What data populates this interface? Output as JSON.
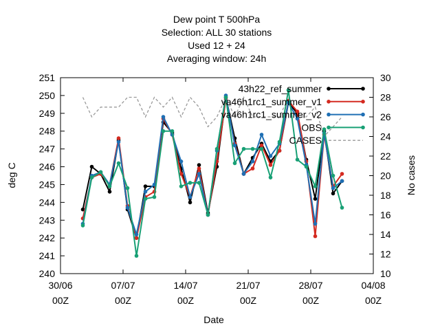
{
  "chart_data": {
    "type": "line",
    "title_lines": [
      "Dew point T 500hPa",
      "Selection: ALL     30 stations",
      "Used  12  + 24",
      "Averaging window: 24h"
    ],
    "xlabel": "Date",
    "ylabel": "deg C",
    "y2label": "No cases",
    "xlim": [
      0,
      35
    ],
    "ylim": [
      240,
      251
    ],
    "y2lim": [
      10,
      30
    ],
    "grid": false,
    "legend_position": "top-right",
    "x_ticks": [
      {
        "x": 0,
        "line1": "30/06",
        "line2": "00Z"
      },
      {
        "x": 7,
        "line1": "07/07",
        "line2": "00Z"
      },
      {
        "x": 14,
        "line1": "14/07",
        "line2": "00Z"
      },
      {
        "x": 21,
        "line1": "21/07",
        "line2": "00Z"
      },
      {
        "x": 28,
        "line1": "28/07",
        "line2": "00Z"
      },
      {
        "x": 35,
        "line1": "04/08",
        "line2": "00Z"
      }
    ],
    "y_ticks": [
      240,
      241,
      242,
      243,
      244,
      245,
      246,
      247,
      248,
      249,
      250,
      251
    ],
    "y2_ticks": [
      10,
      12,
      14,
      16,
      18,
      20,
      22,
      24,
      26,
      28,
      30
    ],
    "series": [
      {
        "name": "43h22 ref_summer",
        "color": "#000000",
        "axis": "left",
        "x": [
          2.5,
          3.5,
          4.5,
          5.5,
          6.5,
          7.5,
          8.5,
          9.5,
          10.5,
          11.5,
          12.5,
          13.5,
          14.5,
          15.5,
          16.5,
          17.5,
          18.5,
          19.5,
          20.5,
          21.5,
          22.5,
          23.5,
          24.5,
          25.5,
          26.5,
          27.5,
          28.5,
          29.5,
          30.5,
          31.5
        ],
        "y": [
          243.6,
          246.0,
          245.6,
          244.6,
          247.5,
          243.6,
          242.0,
          244.9,
          244.9,
          248.5,
          247.9,
          245.9,
          244.0,
          246.1,
          243.4,
          246.0,
          249.9,
          247.6,
          245.6,
          246.5,
          247.3,
          246.3,
          246.9,
          249.6,
          249.0,
          246.4,
          244.2,
          248.0,
          244.5,
          245.2
        ]
      },
      {
        "name": "va46h1rc1_summer_v1",
        "color": "#d42a20",
        "axis": "left",
        "x": [
          2.5,
          3.5,
          4.5,
          5.5,
          6.5,
          7.5,
          8.5,
          9.5,
          10.5,
          11.5,
          12.5,
          13.5,
          14.5,
          15.5,
          16.5,
          17.5,
          18.5,
          19.5,
          20.5,
          21.5,
          22.5,
          23.5,
          24.5,
          25.5,
          26.5,
          27.5,
          28.5,
          29.5,
          30.5,
          31.5
        ],
        "y": [
          243.1,
          245.4,
          245.6,
          245.0,
          247.6,
          243.8,
          242.0,
          244.3,
          244.6,
          248.7,
          247.8,
          245.6,
          244.3,
          245.9,
          243.3,
          246.3,
          249.8,
          247.3,
          245.6,
          245.9,
          247.2,
          246.1,
          246.9,
          249.7,
          249.1,
          246.3,
          242.1,
          247.8,
          244.9,
          245.6
        ]
      },
      {
        "name": "va46h1rc1_summer_v2",
        "color": "#1f6fb4",
        "axis": "left",
        "x": [
          2.5,
          3.5,
          4.5,
          5.5,
          6.5,
          7.5,
          8.5,
          9.5,
          10.5,
          11.5,
          12.5,
          13.5,
          14.5,
          15.5,
          16.5,
          17.5,
          18.5,
          19.5,
          20.5,
          21.5,
          22.5,
          23.5,
          24.5,
          25.5,
          26.5,
          27.5,
          28.5,
          29.5,
          30.5,
          31.5
        ],
        "y": [
          242.8,
          245.5,
          245.7,
          245.0,
          247.4,
          243.7,
          242.2,
          244.6,
          245.0,
          248.8,
          247.8,
          246.3,
          244.3,
          245.6,
          243.3,
          246.9,
          250.0,
          247.2,
          245.6,
          246.3,
          247.8,
          246.6,
          247.3,
          249.6,
          248.7,
          246.1,
          242.8,
          247.9,
          244.8,
          245.2
        ]
      },
      {
        "name": "OBS",
        "color": "#18a075",
        "axis": "left",
        "x": [
          2.5,
          3.5,
          4.5,
          5.5,
          6.5,
          7.5,
          8.5,
          9.5,
          10.5,
          11.5,
          12.5,
          13.5,
          14.5,
          15.5,
          16.5,
          17.5,
          18.5,
          19.5,
          20.5,
          21.5,
          22.5,
          23.5,
          24.5,
          25.5,
          26.5,
          27.5,
          28.5,
          29.5,
          30.5,
          31.5
        ],
        "y": [
          242.7,
          245.4,
          245.7,
          244.9,
          246.2,
          244.8,
          241.0,
          244.2,
          244.3,
          248.0,
          248.0,
          244.9,
          245.1,
          245.1,
          243.3,
          247.0,
          249.9,
          246.2,
          247.0,
          247.0,
          247.0,
          245.4,
          247.4,
          250.3,
          246.4,
          246.0,
          244.9,
          248.1,
          245.5,
          243.7
        ]
      },
      {
        "name": "CASES",
        "color": "#999999",
        "axis": "right",
        "dashed": true,
        "x": [
          2.5,
          3.5,
          4.5,
          5.5,
          6.5,
          7.5,
          8.5,
          9.5,
          10.5,
          11.5,
          12.5,
          13.5,
          14.5,
          15.5,
          16.5,
          17.5,
          18.5,
          19.5,
          20.5,
          21.5,
          22.5,
          23.5,
          24.5,
          25.5,
          26.5,
          27.5,
          28.5,
          29.5,
          30.5,
          31.5
        ],
        "y": [
          28,
          26,
          27,
          27,
          27,
          28,
          28,
          26,
          28,
          27,
          28,
          26,
          28,
          27,
          25,
          26,
          28,
          26,
          28,
          26,
          26,
          26,
          26,
          28,
          26,
          26,
          27,
          24,
          25,
          26
        ]
      }
    ],
    "legend": [
      {
        "label": "43h22_ref_summer",
        "series": 0
      },
      {
        "label": "va46h1rc1_summer_v1",
        "series": 1
      },
      {
        "label": "va46h1rc1_summer_v2",
        "series": 2
      },
      {
        "label": "OBS",
        "series": 3
      },
      {
        "label": "CASES",
        "series": 4
      }
    ]
  }
}
